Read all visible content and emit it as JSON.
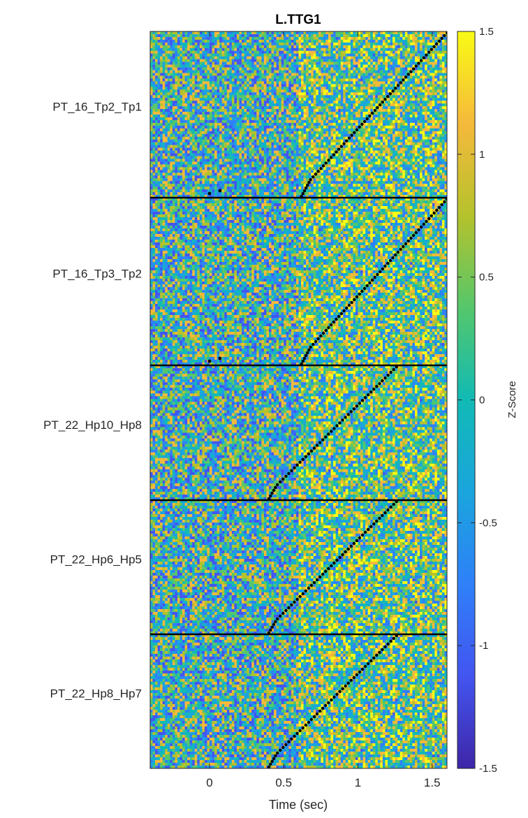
{
  "chart_data": {
    "type": "heatmap",
    "title": "L.TTG1",
    "xlabel": "Time (sec)",
    "xlim": [
      -0.4,
      1.6
    ],
    "xticks": [
      0,
      0.5,
      1,
      1.5
    ],
    "xtick_labels": [
      "0",
      "0.5",
      "1",
      "1.5"
    ],
    "colorbar": {
      "label": "Z-Score",
      "range": [
        -1.5,
        1.5
      ],
      "ticks": [
        1.5,
        1,
        0.5,
        0,
        -0.5,
        -1,
        -1.5
      ],
      "tick_labels": [
        "1.5",
        "1",
        "0.5",
        "0",
        "-0.5",
        "-1",
        "-1.5"
      ],
      "colormap": "parula"
    },
    "groups": [
      {
        "label": "PT_16_Tp2_Tp1",
        "n_trials": 60,
        "onset_start": 0.62,
        "onset_end": 1.6,
        "extra_markers": [
          0.0,
          0.07
        ]
      },
      {
        "label": "PT_16_Tp3_Tp2",
        "n_trials": 60,
        "onset_start": 0.62,
        "onset_end": 1.6,
        "extra_markers": [
          0.0,
          0.07
        ]
      },
      {
        "label": "PT_22_Hp10_Hp8",
        "n_trials": 48,
        "onset_start": 0.4,
        "onset_end": 1.26,
        "extra_markers": []
      },
      {
        "label": "PT_22_Hp6_Hp5",
        "n_trials": 48,
        "onset_start": 0.4,
        "onset_end": 1.26,
        "extra_markers": []
      },
      {
        "label": "PT_22_Hp8_Hp7",
        "n_trials": 48,
        "onset_start": 0.4,
        "onset_end": 1.26,
        "extra_markers": []
      }
    ]
  }
}
